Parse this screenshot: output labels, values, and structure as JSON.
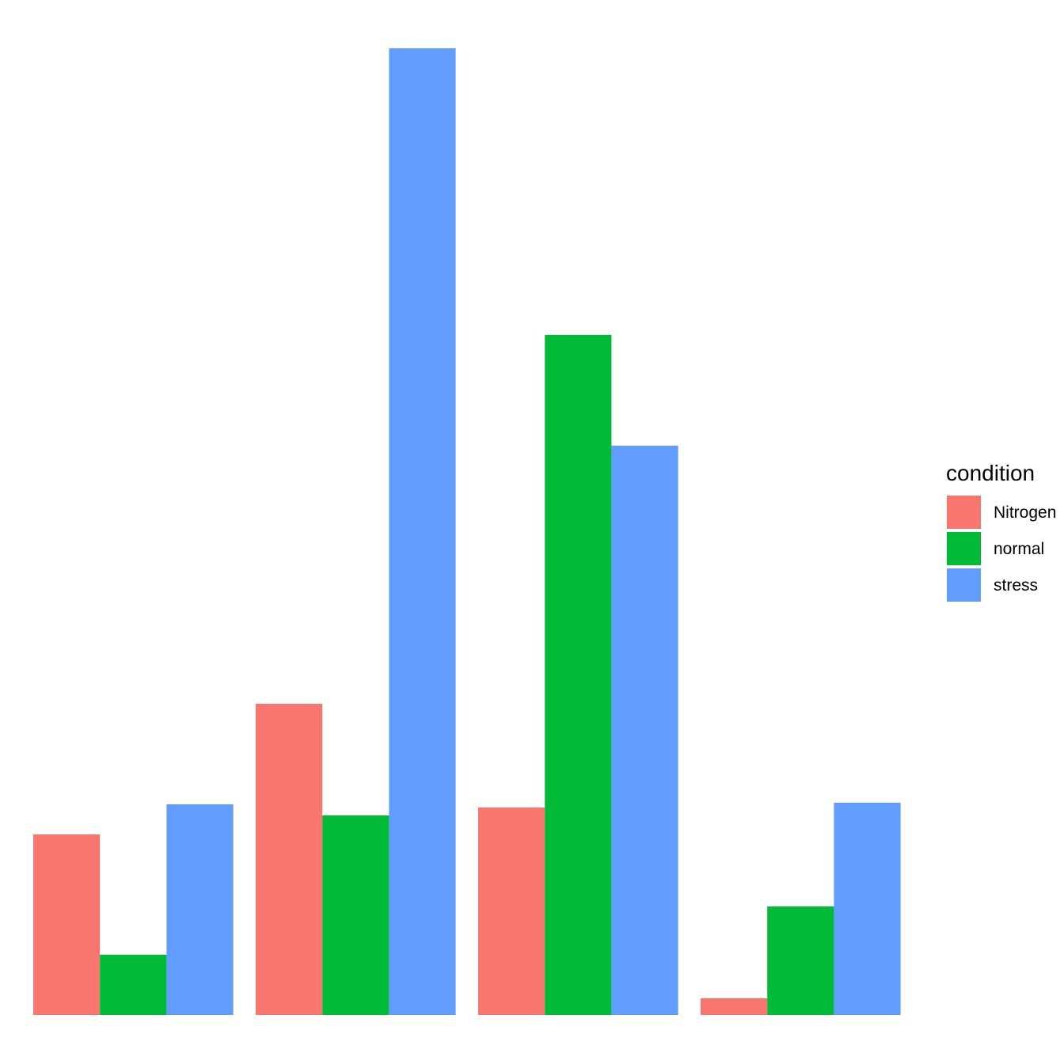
{
  "chart_data": {
    "type": "bar",
    "categories": [
      "",
      "",
      "",
      ""
    ],
    "series": [
      {
        "name": "Nitrogen",
        "color": "#F8766D",
        "values": [
          228,
          393,
          262,
          21
        ]
      },
      {
        "name": "normal",
        "color": "#00BA38",
        "values": [
          76,
          252,
          859,
          137
        ]
      },
      {
        "name": "stress",
        "color": "#619CFF",
        "values": [
          266,
          1221,
          719,
          268
        ]
      }
    ],
    "title": "",
    "xlabel": "",
    "ylabel": "",
    "ylim": [
      0,
      1221
    ],
    "grid": false,
    "legend": {
      "title": "condition",
      "position": "right"
    }
  }
}
